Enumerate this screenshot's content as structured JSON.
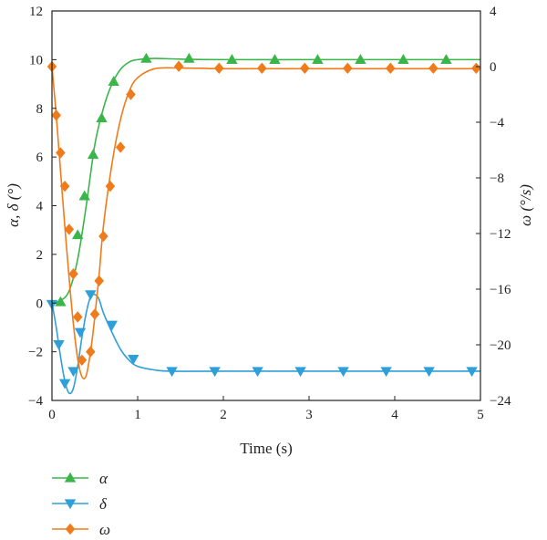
{
  "chart_data": {
    "type": "line",
    "xlabel": "Time (s)",
    "ylabel_left": "α, δ (°)",
    "ylabel_right": "ω (°/s)",
    "xlim": [
      0,
      5
    ],
    "ylim_left": [
      -4,
      12
    ],
    "ylim_right": [
      -24,
      4
    ],
    "x_ticks": [
      0,
      1,
      2,
      3,
      4,
      5
    ],
    "y_left_ticks": [
      -4,
      -2,
      0,
      2,
      4,
      6,
      8,
      10,
      12
    ],
    "y_right_ticks": [
      -24,
      -20,
      -16,
      -12,
      -8,
      -4,
      0,
      4
    ],
    "grid": false,
    "legend_position": "below-left",
    "series": [
      {
        "name": "α",
        "axis": "left",
        "color": "#3ab54a",
        "marker": "triangle-up",
        "curve": [
          [
            0,
            0
          ],
          [
            0.1,
            0.1
          ],
          [
            0.2,
            0.5
          ],
          [
            0.3,
            1.8
          ],
          [
            0.4,
            4.0
          ],
          [
            0.5,
            6.5
          ],
          [
            0.6,
            8.0
          ],
          [
            0.7,
            9.0
          ],
          [
            0.8,
            9.6
          ],
          [
            0.9,
            9.9
          ],
          [
            1.0,
            10.0
          ],
          [
            1.2,
            10.05
          ],
          [
            1.5,
            10.02
          ],
          [
            2.0,
            10.0
          ],
          [
            3.0,
            10.0
          ],
          [
            4.0,
            10.0
          ],
          [
            5.0,
            10.0
          ]
        ],
        "markers": [
          [
            0.1,
            0.05
          ],
          [
            0.3,
            2.8
          ],
          [
            0.38,
            4.4
          ],
          [
            0.48,
            6.1
          ],
          [
            0.58,
            7.6
          ],
          [
            0.72,
            9.1
          ],
          [
            1.1,
            10.05
          ],
          [
            1.6,
            10.05
          ],
          [
            2.1,
            10.0
          ],
          [
            2.6,
            10.0
          ],
          [
            3.1,
            10.0
          ],
          [
            3.6,
            10.0
          ],
          [
            4.1,
            10.0
          ],
          [
            4.6,
            10.0
          ]
        ]
      },
      {
        "name": "δ",
        "axis": "left",
        "color": "#2e9fd8",
        "marker": "triangle-down",
        "curve": [
          [
            0,
            0
          ],
          [
            0.05,
            -1.0
          ],
          [
            0.1,
            -2.2
          ],
          [
            0.15,
            -3.2
          ],
          [
            0.2,
            -3.7
          ],
          [
            0.25,
            -3.5
          ],
          [
            0.3,
            -2.6
          ],
          [
            0.35,
            -1.4
          ],
          [
            0.4,
            -0.4
          ],
          [
            0.45,
            0.25
          ],
          [
            0.5,
            0.35
          ],
          [
            0.55,
            0.15
          ],
          [
            0.6,
            -0.4
          ],
          [
            0.7,
            -1.2
          ],
          [
            0.8,
            -1.9
          ],
          [
            0.9,
            -2.35
          ],
          [
            1.0,
            -2.6
          ],
          [
            1.2,
            -2.75
          ],
          [
            1.4,
            -2.8
          ],
          [
            2.0,
            -2.8
          ],
          [
            5.0,
            -2.8
          ]
        ],
        "markers": [
          [
            0,
            -0.05
          ],
          [
            0.08,
            -1.7
          ],
          [
            0.15,
            -3.3
          ],
          [
            0.25,
            -2.8
          ],
          [
            0.33,
            -1.2
          ],
          [
            0.45,
            0.35
          ],
          [
            0.7,
            -0.9
          ],
          [
            0.95,
            -2.3
          ],
          [
            1.4,
            -2.8
          ],
          [
            1.9,
            -2.8
          ],
          [
            2.4,
            -2.8
          ],
          [
            2.9,
            -2.8
          ],
          [
            3.4,
            -2.8
          ],
          [
            3.9,
            -2.8
          ],
          [
            4.4,
            -2.8
          ],
          [
            4.9,
            -2.8
          ]
        ]
      },
      {
        "name": "ω",
        "axis": "right",
        "color": "#f07b1a",
        "marker": "diamond",
        "curve": [
          [
            0,
            0
          ],
          [
            0.05,
            -3.5
          ],
          [
            0.1,
            -7.5
          ],
          [
            0.15,
            -11.5
          ],
          [
            0.2,
            -15.2
          ],
          [
            0.25,
            -18.5
          ],
          [
            0.3,
            -21.0
          ],
          [
            0.35,
            -22.3
          ],
          [
            0.4,
            -22.2
          ],
          [
            0.45,
            -20.5
          ],
          [
            0.5,
            -18.0
          ],
          [
            0.55,
            -15.0
          ],
          [
            0.6,
            -11.5
          ],
          [
            0.7,
            -7.0
          ],
          [
            0.8,
            -3.8
          ],
          [
            0.9,
            -1.8
          ],
          [
            1.0,
            -0.8
          ],
          [
            1.2,
            -0.15
          ],
          [
            1.5,
            -0.1
          ],
          [
            2.0,
            -0.15
          ],
          [
            3.0,
            -0.15
          ],
          [
            5.0,
            -0.15
          ]
        ],
        "markers": [
          [
            0,
            0
          ],
          [
            0.05,
            -3.5
          ],
          [
            0.1,
            -6.2
          ],
          [
            0.15,
            -8.6
          ],
          [
            0.2,
            -11.7
          ],
          [
            0.25,
            -14.9
          ],
          [
            0.3,
            -18.0
          ],
          [
            0.35,
            -21.1
          ],
          [
            0.45,
            -20.5
          ],
          [
            0.5,
            -17.8
          ],
          [
            0.55,
            -15.4
          ],
          [
            0.6,
            -12.2
          ],
          [
            0.68,
            -8.6
          ],
          [
            0.8,
            -5.8
          ],
          [
            0.92,
            -2.0
          ],
          [
            1.48,
            0.02
          ],
          [
            1.95,
            -0.12
          ],
          [
            2.45,
            -0.12
          ],
          [
            2.95,
            -0.12
          ],
          [
            3.45,
            -0.12
          ],
          [
            3.95,
            -0.12
          ],
          [
            4.45,
            -0.12
          ],
          [
            4.95,
            -0.12
          ]
        ]
      }
    ]
  }
}
